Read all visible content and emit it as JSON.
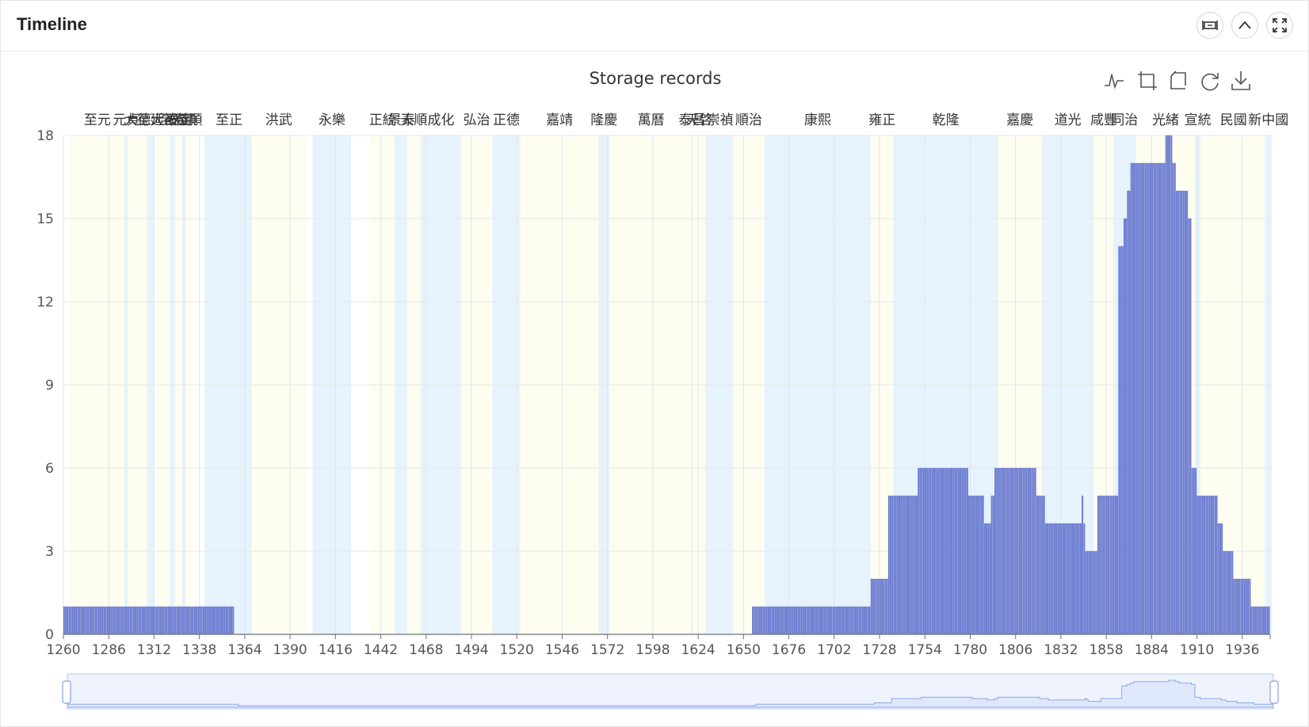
{
  "panel": {
    "title": "Timeline",
    "buttons": [
      {
        "name": "fit-width-button",
        "icon": "fit-width-icon"
      },
      {
        "name": "collapse-button",
        "icon": "chevron-up-icon"
      },
      {
        "name": "fullscreen-button",
        "icon": "fullscreen-icon"
      }
    ]
  },
  "toolbox": [
    "line-chart-icon",
    "zoom-icon",
    "zoom-reset-icon",
    "refresh-icon",
    "download-icon"
  ],
  "colors": {
    "bar": "#6f7fd2",
    "bar_stroke": "#5566c8",
    "era_a": "#fdfdf0",
    "era_b": "#e6f3fc",
    "grid": "#e8e8e8",
    "slider_fill": "#dfe8fb",
    "slider_line": "#8fa8e6"
  },
  "chart_data": {
    "type": "bar",
    "title": "Storage records",
    "xlim": [
      1260,
      1952
    ],
    "ylim": [
      0,
      18
    ],
    "x_ticks": [
      1260,
      1286,
      1312,
      1338,
      1364,
      1390,
      1416,
      1442,
      1468,
      1494,
      1520,
      1546,
      1572,
      1598,
      1624,
      1650,
      1676,
      1702,
      1728,
      1754,
      1780,
      1806,
      1832,
      1858,
      1884,
      1910,
      1936
    ],
    "y_ticks": [
      0,
      3,
      6,
      9,
      12,
      15,
      18
    ],
    "grid": true,
    "eras": [
      {
        "name": "至元",
        "start": 1264,
        "end": 1294
      },
      {
        "name": "元貞",
        "start": 1295,
        "end": 1296
      },
      {
        "name": "大德",
        "start": 1297,
        "end": 1307
      },
      {
        "name": "至大",
        "start": 1308,
        "end": 1311
      },
      {
        "name": "延祐",
        "start": 1314,
        "end": 1320
      },
      {
        "name": "至治",
        "start": 1321,
        "end": 1323
      },
      {
        "name": "泰定",
        "start": 1324,
        "end": 1328
      },
      {
        "name": "天順",
        "start": 1328,
        "end": 1329
      },
      {
        "name": "至順",
        "start": 1330,
        "end": 1333
      },
      {
        "name": "至正",
        "start": 1341,
        "end": 1368
      },
      {
        "name": "洪武",
        "start": 1368,
        "end": 1398
      },
      {
        "name": "永樂",
        "start": 1403,
        "end": 1424
      },
      {
        "name": "正統",
        "start": 1436,
        "end": 1449
      },
      {
        "name": "景泰",
        "start": 1450,
        "end": 1457
      },
      {
        "name": "天順",
        "start": 1457,
        "end": 1464
      },
      {
        "name": "成化",
        "start": 1465,
        "end": 1487
      },
      {
        "name": "弘治",
        "start": 1488,
        "end": 1505
      },
      {
        "name": "正德",
        "start": 1506,
        "end": 1521
      },
      {
        "name": "嘉靖",
        "start": 1522,
        "end": 1566
      },
      {
        "name": "隆慶",
        "start": 1567,
        "end": 1572
      },
      {
        "name": "萬曆",
        "start": 1573,
        "end": 1620
      },
      {
        "name": "泰昌",
        "start": 1620,
        "end": 1620
      },
      {
        "name": "天啓",
        "start": 1621,
        "end": 1627
      },
      {
        "name": "崇禎",
        "start": 1628,
        "end": 1644
      },
      {
        "name": "順治",
        "start": 1644,
        "end": 1661
      },
      {
        "name": "康熙",
        "start": 1662,
        "end": 1722
      },
      {
        "name": "雍正",
        "start": 1723,
        "end": 1735
      },
      {
        "name": "乾隆",
        "start": 1736,
        "end": 1795
      },
      {
        "name": "嘉慶",
        "start": 1796,
        "end": 1820
      },
      {
        "name": "道光",
        "start": 1821,
        "end": 1850
      },
      {
        "name": "咸豐",
        "start": 1851,
        "end": 1861
      },
      {
        "name": "同治",
        "start": 1862,
        "end": 1874
      },
      {
        "name": "光緒",
        "start": 1875,
        "end": 1908
      },
      {
        "name": "宣統",
        "start": 1909,
        "end": 1911
      },
      {
        "name": "民國",
        "start": 1912,
        "end": 1949
      },
      {
        "name": "新中國",
        "start": 1949,
        "end": 1952
      }
    ],
    "series_steps": [
      {
        "start": 1260,
        "end": 1358,
        "value": 1
      },
      {
        "start": 1655,
        "end": 1723,
        "value": 1
      },
      {
        "start": 1723,
        "end": 1733,
        "value": 2
      },
      {
        "start": 1733,
        "end": 1750,
        "value": 5
      },
      {
        "start": 1750,
        "end": 1779,
        "value": 6
      },
      {
        "start": 1779,
        "end": 1788,
        "value": 5
      },
      {
        "start": 1788,
        "end": 1792,
        "value": 4
      },
      {
        "start": 1792,
        "end": 1794,
        "value": 5
      },
      {
        "start": 1794,
        "end": 1818,
        "value": 6
      },
      {
        "start": 1818,
        "end": 1823,
        "value": 5
      },
      {
        "start": 1823,
        "end": 1844,
        "value": 4
      },
      {
        "start": 1844,
        "end": 1845,
        "value": 5
      },
      {
        "start": 1845,
        "end": 1846,
        "value": 4
      },
      {
        "start": 1846,
        "end": 1853,
        "value": 3
      },
      {
        "start": 1853,
        "end": 1865,
        "value": 5
      },
      {
        "start": 1865,
        "end": 1868,
        "value": 14
      },
      {
        "start": 1868,
        "end": 1870,
        "value": 15
      },
      {
        "start": 1870,
        "end": 1872,
        "value": 16
      },
      {
        "start": 1872,
        "end": 1892,
        "value": 17
      },
      {
        "start": 1892,
        "end": 1896,
        "value": 18
      },
      {
        "start": 1896,
        "end": 1898,
        "value": 17
      },
      {
        "start": 1898,
        "end": 1905,
        "value": 16
      },
      {
        "start": 1905,
        "end": 1907,
        "value": 15
      },
      {
        "start": 1907,
        "end": 1910,
        "value": 6
      },
      {
        "start": 1910,
        "end": 1922,
        "value": 5
      },
      {
        "start": 1922,
        "end": 1925,
        "value": 4
      },
      {
        "start": 1925,
        "end": 1931,
        "value": 3
      },
      {
        "start": 1931,
        "end": 1941,
        "value": 2
      },
      {
        "start": 1941,
        "end": 1952,
        "value": 1
      }
    ]
  }
}
